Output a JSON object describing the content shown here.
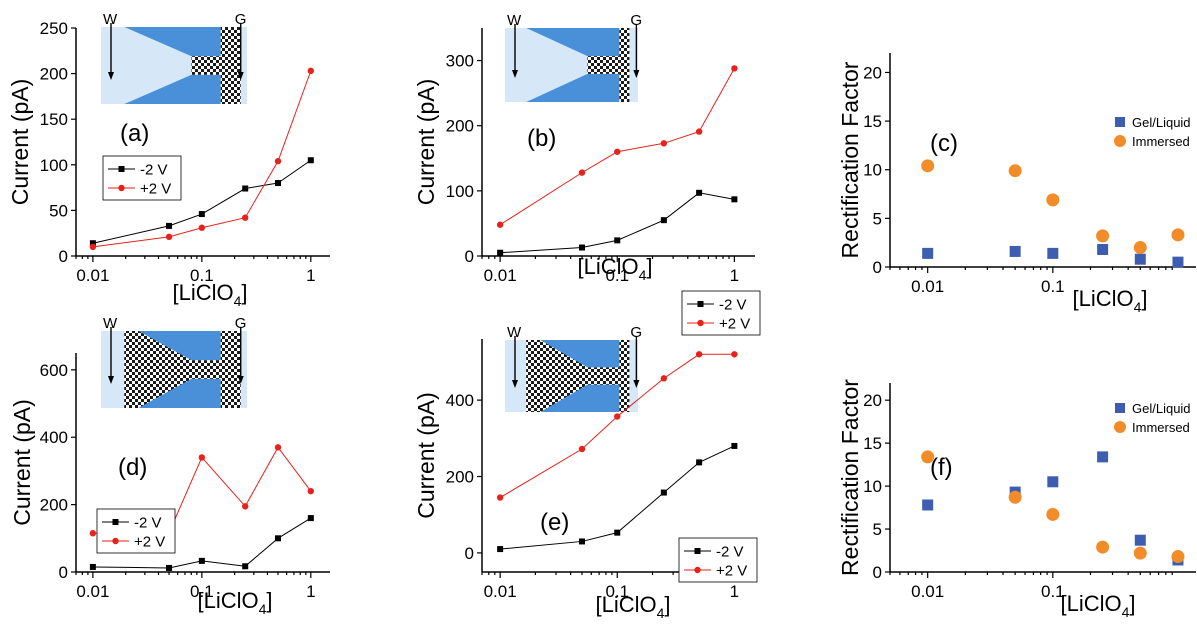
{
  "colors": {
    "neg2v": "#000000",
    "pos2v": "#e8211a",
    "gel_liquid": "#3d5eb0",
    "immersed": "#f28c28",
    "channel_blue": "#4a90d9",
    "liquid_light": "#d6e8f7"
  },
  "chart_data": [
    {
      "id": "a",
      "type": "line",
      "panel_label": "(a)",
      "xscale": "log",
      "xlim": [
        0.007,
        1.5
      ],
      "ylim": [
        0,
        250
      ],
      "x": [
        0.01,
        0.05,
        0.1,
        0.25,
        0.5,
        1
      ],
      "xticks": [
        0.01,
        0.1,
        1
      ],
      "xtick_labels": [
        "0.01",
        "0.1",
        "1"
      ],
      "yticks": [
        0,
        50,
        100,
        150,
        200,
        250
      ],
      "ytick_labels": [
        "0",
        "50",
        "100",
        "150",
        "200",
        "250"
      ],
      "ylabel": "Current (pA)",
      "xlabel_main": "[LiClO",
      "xlabel_sub": "4",
      "xlabel_end": "]",
      "series": [
        {
          "name": "-2 V",
          "values": [
            14,
            33,
            46,
            74,
            80,
            105
          ]
        },
        {
          "name": "+2 V",
          "values": [
            10,
            21,
            31,
            42,
            104,
            203
          ]
        }
      ],
      "inset": {
        "left_label": "W",
        "right_label": "G",
        "variant": "gel-right"
      }
    },
    {
      "id": "b",
      "type": "line",
      "panel_label": "(b)",
      "xscale": "log",
      "xlim": [
        0.007,
        1.5
      ],
      "ylim": [
        0,
        350
      ],
      "x": [
        0.01,
        0.05,
        0.1,
        0.25,
        0.5,
        1
      ],
      "xticks": [
        0.01,
        0.1,
        1
      ],
      "xtick_labels": [
        "0.01",
        "0.1",
        "1"
      ],
      "yticks": [
        0,
        100,
        200,
        300
      ],
      "ytick_labels": [
        "0",
        "100",
        "200",
        "300"
      ],
      "ylabel": "Current (pA)",
      "xlabel_main": "[LiClO",
      "xlabel_sub": "4",
      "xlabel_end": "]",
      "series": [
        {
          "name": "-2 V",
          "values": [
            5,
            13,
            24,
            55,
            97,
            87
          ]
        },
        {
          "name": "+2 V",
          "values": [
            48,
            128,
            160,
            173,
            191,
            288
          ]
        }
      ],
      "inset": {
        "left_label": "W",
        "right_label": "G",
        "variant": "gel-right-thin"
      }
    },
    {
      "id": "c",
      "type": "scatter",
      "panel_label": "(c)",
      "xscale": "log",
      "xlim": [
        0.005,
        1.5
      ],
      "ylim": [
        0,
        22
      ],
      "x": [
        0.01,
        0.05,
        0.1,
        0.25,
        0.5,
        1
      ],
      "xticks": [
        0.01,
        0.1
      ],
      "xtick_labels": [
        "0.01",
        "0.1"
      ],
      "yticks": [
        0,
        5,
        10,
        15,
        20
      ],
      "ytick_labels": [
        "0",
        "5",
        "10",
        "15",
        "20"
      ],
      "ylabel": "Rectification Factor",
      "xlabel_main": "[LiClO",
      "xlabel_sub": "4",
      "xlabel_end": "]",
      "series": [
        {
          "name": "Gel/Liquid",
          "marker": "square",
          "values": [
            1.4,
            1.6,
            1.4,
            1.8,
            0.8,
            0.5
          ]
        },
        {
          "name": "Immersed",
          "marker": "circle",
          "values": [
            10.4,
            9.9,
            6.9,
            3.2,
            2.0,
            3.3
          ]
        }
      ]
    },
    {
      "id": "d",
      "type": "line",
      "panel_label": "(d)",
      "xscale": "log",
      "xlim": [
        0.007,
        1.5
      ],
      "ylim": [
        0,
        650
      ],
      "x": [
        0.01,
        0.05,
        0.1,
        0.25,
        0.5,
        1
      ],
      "xticks": [
        0.01,
        0.1,
        1
      ],
      "xtick_labels": [
        "0.01",
        "0.1",
        "1"
      ],
      "yticks": [
        0,
        200,
        400,
        600
      ],
      "ytick_labels": [
        "0",
        "200",
        "400",
        "600"
      ],
      "ylabel": "Current (pA)",
      "xlabel_main": "[LiClO",
      "xlabel_sub": "4",
      "xlabel_end": "]",
      "series": [
        {
          "name": "-2 V",
          "values": [
            15,
            12,
            33,
            17,
            100,
            160
          ]
        },
        {
          "name": "+2 V",
          "values": [
            115,
            117,
            340,
            195,
            370,
            240
          ]
        }
      ],
      "inset": {
        "left_label": "W",
        "right_label": "G",
        "variant": "gel-both"
      }
    },
    {
      "id": "e",
      "type": "line",
      "panel_label": "(e)",
      "xscale": "log",
      "xlim": [
        0.007,
        1.5
      ],
      "ylim": [
        -50,
        560
      ],
      "x": [
        0.01,
        0.05,
        0.1,
        0.25,
        0.5,
        1
      ],
      "xticks": [
        0.01,
        0.1,
        1
      ],
      "xtick_labels": [
        "0.01",
        "0.1",
        "1"
      ],
      "yticks": [
        0,
        200,
        400
      ],
      "ytick_labels": [
        "0",
        "200",
        "400"
      ],
      "ylabel": "Current (pA)",
      "xlabel_main": "[LiClO",
      "xlabel_sub": "4",
      "xlabel_end": "]",
      "series": [
        {
          "name": "-2 V",
          "values": [
            10,
            30,
            53,
            158,
            237,
            280
          ]
        },
        {
          "name": "+2 V",
          "values": [
            145,
            272,
            357,
            457,
            520,
            520
          ]
        }
      ],
      "inset": {
        "left_label": "W",
        "right_label": "G",
        "variant": "gel-both-thin"
      }
    },
    {
      "id": "f",
      "type": "scatter",
      "panel_label": "(f)",
      "xscale": "log",
      "xlim": [
        0.005,
        1.5
      ],
      "ylim": [
        0,
        22
      ],
      "x": [
        0.01,
        0.05,
        0.1,
        0.25,
        0.5,
        1
      ],
      "xticks": [
        0.01,
        0.1
      ],
      "xtick_labels": [
        "0.01",
        "0.1"
      ],
      "yticks": [
        0,
        5,
        10,
        15,
        20
      ],
      "ytick_labels": [
        "0",
        "5",
        "10",
        "15",
        "20"
      ],
      "ylabel": "Rectification Factor",
      "xlabel_main": "[LiClO",
      "xlabel_sub": "4",
      "xlabel_end": "]",
      "series": [
        {
          "name": "Gel/Liquid",
          "marker": "square",
          "values": [
            7.8,
            9.3,
            10.5,
            13.4,
            3.7,
            1.4
          ]
        },
        {
          "name": "Immersed",
          "marker": "circle",
          "values": [
            13.4,
            8.7,
            6.7,
            2.9,
            2.2,
            1.8
          ]
        }
      ]
    }
  ]
}
